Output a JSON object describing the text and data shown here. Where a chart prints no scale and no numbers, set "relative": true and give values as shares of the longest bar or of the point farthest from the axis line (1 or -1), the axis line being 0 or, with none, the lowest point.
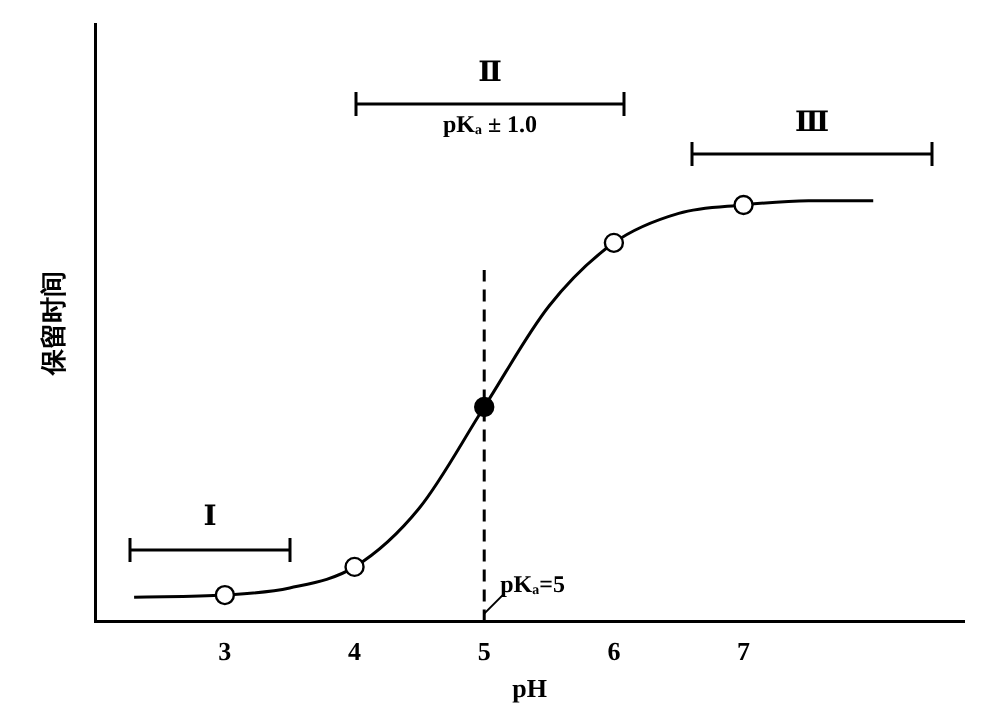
{
  "chart_data": {
    "type": "line",
    "xlabel": "pH",
    "ylabel": "保留时间",
    "relative": true,
    "xlim": [
      2,
      8.7
    ],
    "xticks": [
      3,
      4,
      5,
      6,
      7
    ],
    "grid": false,
    "legend": false,
    "series": [
      {
        "color": "#000000",
        "marker": "none",
        "x": [
          2.3,
          3,
          3.5,
          4,
          4.5,
          5,
          5.5,
          6,
          6.5,
          7,
          7.5,
          8
        ],
        "values": [
          0.058,
          0.063,
          0.08,
          0.13,
          0.27,
          0.51,
          0.75,
          0.9,
          0.97,
          0.99,
          1,
          1
        ]
      },
      {
        "type": "scatter",
        "color": "#000000",
        "marker": "circle",
        "colors": [
          "#ffffff",
          "#ffffff",
          "#000000",
          "#ffffff",
          "#ffffff"
        ],
        "x": [
          3,
          4,
          5,
          6,
          7
        ],
        "values": [
          0.063,
          0.13,
          0.51,
          0.9,
          0.99
        ]
      }
    ],
    "ref_lines": [
      {
        "axis": "x",
        "value": 5,
        "label": "pKₐ=5",
        "line_style": "dashed"
      }
    ],
    "annotations": [
      "Ⅰ",
      "Ⅱ",
      "pKₐ ± 1.0",
      "Ⅲ"
    ]
  }
}
